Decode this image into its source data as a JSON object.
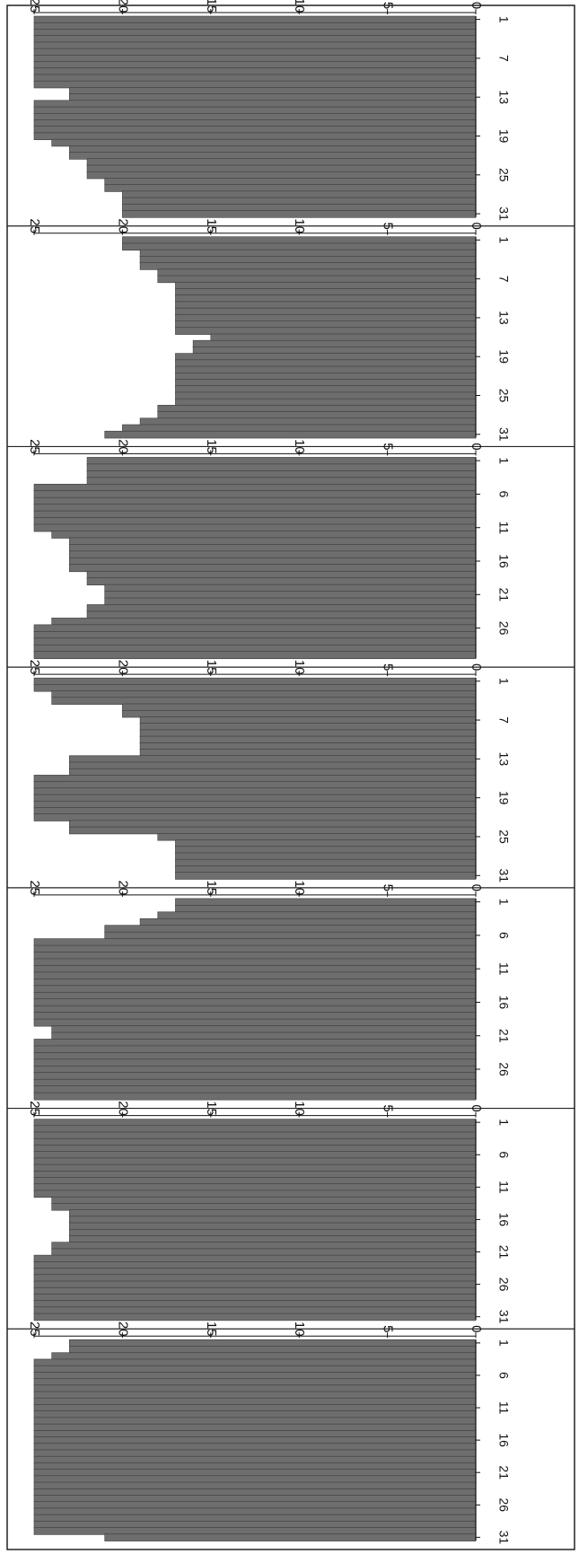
{
  "figure": {
    "chart_data": [
      {
        "type": "bar",
        "ylim": [
          0,
          25
        ],
        "yticks": [
          0,
          5,
          10,
          15,
          20,
          25
        ],
        "xtick_labels": [
          "1",
          "7",
          "13",
          "19",
          "25",
          "31"
        ],
        "x": [
          1,
          2,
          3,
          4,
          5,
          6,
          7,
          8,
          9,
          10,
          11,
          12,
          13,
          14,
          15,
          16,
          17,
          18,
          19,
          20,
          21,
          22,
          23,
          24,
          25,
          26,
          27,
          28,
          29,
          30,
          31
        ],
        "values": [
          25,
          25,
          25,
          25,
          25,
          25,
          25,
          25,
          25,
          25,
          25,
          23,
          23,
          25,
          25,
          25,
          25,
          25,
          25,
          24,
          23,
          23,
          22,
          22,
          22,
          21,
          21,
          20,
          20,
          20,
          20
        ],
        "bar_color": "#6e6e6e"
      },
      {
        "type": "bar",
        "ylim": [
          0,
          25
        ],
        "yticks": [
          0,
          5,
          10,
          15,
          20,
          25
        ],
        "xtick_labels": [
          "1",
          "7",
          "13",
          "19",
          "25",
          "31"
        ],
        "x": [
          1,
          2,
          3,
          4,
          5,
          6,
          7,
          8,
          9,
          10,
          11,
          12,
          13,
          14,
          15,
          16,
          17,
          18,
          19,
          20,
          21,
          22,
          23,
          24,
          25,
          26,
          27,
          28,
          29,
          30,
          31
        ],
        "values": [
          20,
          20,
          19,
          19,
          19,
          18,
          18,
          17,
          17,
          17,
          17,
          17,
          17,
          17,
          17,
          15,
          16,
          16,
          17,
          17,
          17,
          17,
          17,
          17,
          17,
          17,
          18,
          18,
          19,
          20,
          21
        ],
        "bar_color": "#6e6e6e"
      },
      {
        "type": "bar",
        "ylim": [
          0,
          25
        ],
        "yticks": [
          0,
          5,
          10,
          15,
          20,
          25
        ],
        "xtick_labels": [
          "1",
          "6",
          "11",
          "16",
          "21",
          "26"
        ],
        "x": [
          1,
          2,
          3,
          4,
          5,
          6,
          7,
          8,
          9,
          10,
          11,
          12,
          13,
          14,
          15,
          16,
          17,
          18,
          19,
          20,
          21,
          22,
          23,
          24,
          25,
          26,
          27,
          28,
          29,
          30
        ],
        "values": [
          22,
          22,
          22,
          22,
          25,
          25,
          25,
          25,
          25,
          25,
          25,
          24,
          23,
          23,
          23,
          23,
          23,
          22,
          22,
          21,
          21,
          21,
          22,
          22,
          24,
          25,
          25,
          25,
          25,
          25
        ],
        "bar_color": "#6e6e6e"
      },
      {
        "type": "bar",
        "ylim": [
          0,
          25
        ],
        "yticks": [
          0,
          5,
          10,
          15,
          20,
          25
        ],
        "xtick_labels": [
          "1",
          "7",
          "13",
          "19",
          "25",
          "31"
        ],
        "x": [
          1,
          2,
          3,
          4,
          5,
          6,
          7,
          8,
          9,
          10,
          11,
          12,
          13,
          14,
          15,
          16,
          17,
          18,
          19,
          20,
          21,
          22,
          23,
          24,
          25,
          26,
          27,
          28,
          29,
          30,
          31
        ],
        "values": [
          25,
          25,
          24,
          24,
          20,
          20,
          19,
          19,
          19,
          19,
          19,
          19,
          23,
          23,
          23,
          25,
          25,
          25,
          25,
          25,
          25,
          25,
          23,
          23,
          18,
          17,
          17,
          17,
          17,
          17,
          17
        ],
        "bar_color": "#6e6e6e"
      },
      {
        "type": "bar",
        "ylim": [
          0,
          25
        ],
        "yticks": [
          0,
          5,
          10,
          15,
          20,
          25
        ],
        "xtick_labels": [
          "1",
          "6",
          "11",
          "16",
          "21",
          "26"
        ],
        "x": [
          1,
          2,
          3,
          4,
          5,
          6,
          7,
          8,
          9,
          10,
          11,
          12,
          13,
          14,
          15,
          16,
          17,
          18,
          19,
          20,
          21,
          22,
          23,
          24,
          25,
          26,
          27,
          28,
          29,
          30
        ],
        "values": [
          17,
          17,
          18,
          19,
          21,
          21,
          25,
          25,
          25,
          25,
          25,
          25,
          25,
          25,
          25,
          25,
          25,
          25,
          25,
          24,
          24,
          25,
          25,
          25,
          25,
          25,
          25,
          25,
          25,
          25
        ],
        "bar_color": "#6e6e6e"
      },
      {
        "type": "bar",
        "ylim": [
          0,
          25
        ],
        "yticks": [
          0,
          5,
          10,
          15,
          20,
          25
        ],
        "xtick_labels": [
          "1",
          "6",
          "11",
          "16",
          "21",
          "26",
          "31"
        ],
        "x": [
          1,
          2,
          3,
          4,
          5,
          6,
          7,
          8,
          9,
          10,
          11,
          12,
          13,
          14,
          15,
          16,
          17,
          18,
          19,
          20,
          21,
          22,
          23,
          24,
          25,
          26,
          27,
          28,
          29,
          30,
          31
        ],
        "values": [
          25,
          25,
          25,
          25,
          25,
          25,
          25,
          25,
          25,
          25,
          25,
          25,
          24,
          24,
          23,
          23,
          23,
          23,
          23,
          24,
          24,
          25,
          25,
          25,
          25,
          25,
          25,
          25,
          25,
          25,
          25
        ],
        "bar_color": "#6e6e6e"
      },
      {
        "type": "bar",
        "ylim": [
          0,
          25
        ],
        "yticks": [
          0,
          5,
          10,
          15,
          20,
          25
        ],
        "xtick_labels": [
          "1",
          "6",
          "11",
          "16",
          "21",
          "26",
          "31"
        ],
        "x": [
          1,
          2,
          3,
          4,
          5,
          6,
          7,
          8,
          9,
          10,
          11,
          12,
          13,
          14,
          15,
          16,
          17,
          18,
          19,
          20,
          21,
          22,
          23,
          24,
          25,
          26,
          27,
          28,
          29,
          30,
          31
        ],
        "values": [
          23,
          23,
          24,
          25,
          25,
          25,
          25,
          25,
          25,
          25,
          25,
          25,
          25,
          25,
          25,
          25,
          25,
          25,
          25,
          25,
          25,
          25,
          25,
          25,
          25,
          25,
          25,
          25,
          25,
          25,
          21
        ],
        "bar_color": "#6e6e6e"
      }
    ]
  }
}
